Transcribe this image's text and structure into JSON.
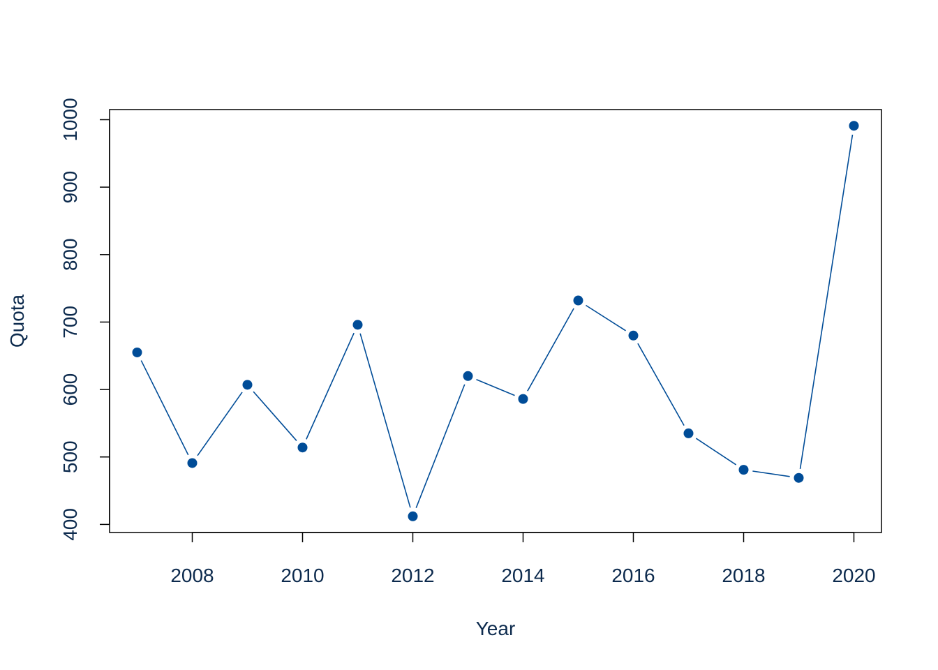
{
  "chart_data": {
    "type": "line",
    "title": "",
    "xlabel": "Year",
    "ylabel": "Quota",
    "xlim": [
      2006.5,
      2020.5
    ],
    "ylim": [
      388,
      1015
    ],
    "x_ticks": [
      2008,
      2010,
      2012,
      2014,
      2016,
      2018,
      2020
    ],
    "x_tick_labels": [
      "2008",
      "2010",
      "2012",
      "2014",
      "2016",
      "2018",
      "2020"
    ],
    "y_ticks": [
      400,
      500,
      600,
      700,
      800,
      900,
      1000
    ],
    "y_tick_labels": [
      "400",
      "500",
      "600",
      "700",
      "800",
      "900",
      "1000"
    ],
    "grid": false,
    "series": [
      {
        "x": [
          2007,
          2008,
          2009,
          2010,
          2011,
          2012,
          2013,
          2014,
          2015,
          2016,
          2017,
          2018,
          2019,
          2020
        ],
        "values": [
          655,
          491,
          607,
          514,
          696,
          412,
          620,
          586,
          732,
          680,
          535,
          481,
          469,
          991
        ],
        "color": "#004c97"
      }
    ]
  }
}
